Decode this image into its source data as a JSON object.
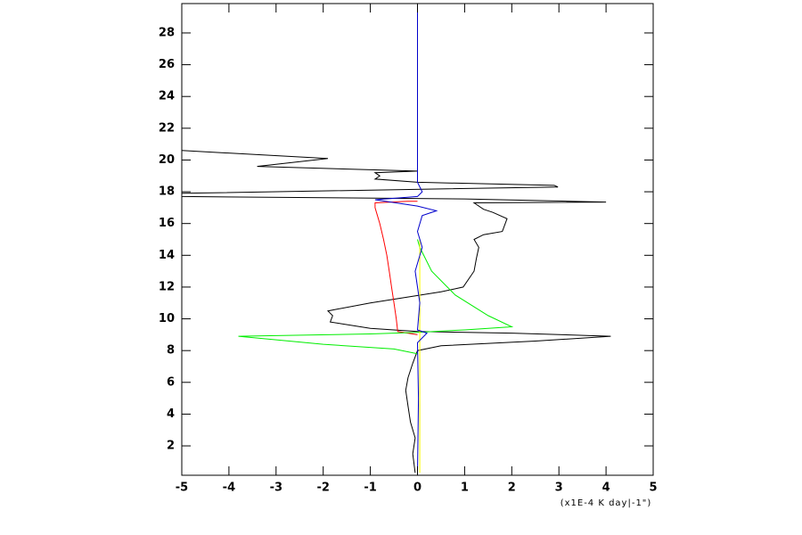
{
  "chart_data": {
    "type": "line",
    "x_label": "(x1E-4 K day|-1\")",
    "xlim": [
      -5,
      5
    ],
    "ylim": [
      0.15,
      29.85
    ],
    "xticks": [
      -5,
      -4,
      -3,
      -2,
      -1,
      0,
      1,
      2,
      3,
      4,
      5
    ],
    "yticks": [
      2,
      4,
      6,
      8,
      10,
      12,
      14,
      16,
      18,
      20,
      22,
      24,
      26,
      28
    ],
    "series": [
      {
        "color": "#000000",
        "x": [
          -0.05,
          -0.1,
          -0.05,
          -0.15,
          -0.2,
          -0.25,
          -0.2,
          -0.1,
          0.0,
          0.5,
          2.5,
          4.1,
          2.0,
          0.0,
          -1.0,
          -1.85,
          -1.8,
          -1.9,
          -1.0,
          0.5,
          0.97,
          1.2,
          1.25,
          1.3,
          1.2,
          1.4,
          1.8,
          1.9,
          1.6,
          1.4,
          1.2,
          4.0,
          1.0,
          -5.0,
          -5.0,
          2.98,
          2.9,
          0.0,
          -0.9,
          -0.8,
          -0.9,
          0.0,
          -3.4,
          -1.9,
          -5.0
        ],
        "y": [
          0.3,
          1.5,
          2.5,
          3.5,
          4.5,
          5.5,
          6.3,
          7.2,
          8.0,
          8.3,
          8.6,
          8.9,
          9.1,
          9.2,
          9.4,
          9.8,
          10.2,
          10.5,
          11.0,
          11.7,
          12.0,
          13.0,
          13.8,
          14.5,
          15.0,
          15.3,
          15.5,
          16.3,
          16.7,
          16.9,
          17.3,
          17.35,
          17.55,
          17.7,
          17.9,
          18.3,
          18.4,
          18.6,
          18.8,
          19.0,
          19.2,
          19.3,
          19.6,
          20.1,
          20.6
        ]
      },
      {
        "color": "#ff0000",
        "x": [
          0.0,
          -0.42,
          -0.45,
          -0.5,
          -0.55,
          -0.6,
          -0.65,
          -0.72,
          -0.8,
          -0.9,
          -0.9,
          -0.2,
          0.0
        ],
        "y": [
          9.0,
          9.2,
          10.0,
          11.0,
          12.0,
          13.0,
          14.0,
          15.0,
          16.0,
          17.0,
          17.3,
          17.4,
          17.4
        ]
      },
      {
        "color": "#00ee00",
        "x": [
          0.0,
          -0.5,
          -2.0,
          -3.8,
          -1.0,
          0.0,
          1.0,
          2.0,
          1.5,
          0.8,
          0.3,
          0.05,
          0.0
        ],
        "y": [
          7.8,
          8.1,
          8.4,
          8.9,
          9.05,
          9.15,
          9.3,
          9.5,
          10.2,
          11.5,
          13.0,
          14.5,
          15.0
        ]
      },
      {
        "color": "#ffff00",
        "x": [
          0.05,
          0.05,
          0.05
        ],
        "y": [
          0.3,
          8.0,
          15.0
        ]
      },
      {
        "color": "#0000cc",
        "x": [
          0.0,
          0.02,
          0.0,
          0.2,
          0.0,
          0.05,
          -0.05,
          0.1,
          0.0,
          0.1,
          0.4,
          0.0,
          -0.9,
          0.0,
          0.1,
          0.0,
          0.0
        ],
        "y": [
          0.3,
          5.0,
          8.5,
          9.1,
          9.3,
          11.0,
          13.0,
          14.5,
          15.5,
          16.5,
          16.8,
          17.1,
          17.5,
          17.7,
          18.0,
          18.6,
          29.85
        ]
      }
    ]
  }
}
